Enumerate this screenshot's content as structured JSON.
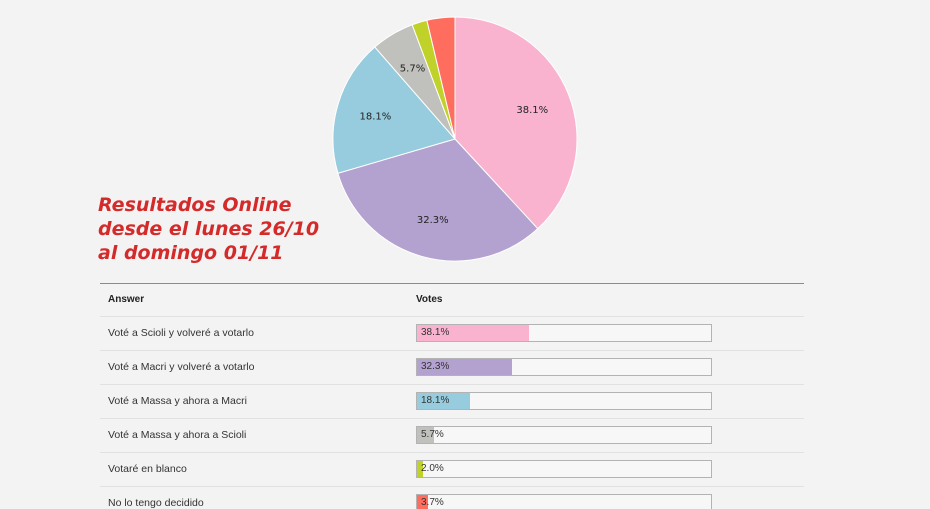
{
  "headline": {
    "line1": "Resultados Online",
    "line2": "desde el lunes 26/10",
    "line3": "al domingo 01/11"
  },
  "chart_data": {
    "type": "pie",
    "title": "",
    "slices": [
      {
        "label": "Voté a Scioli y volveré a votarlo",
        "value": 38.1,
        "display": "38.1%",
        "color": "#f9b3cf"
      },
      {
        "label": "Voté a Macri y volveré a votarlo",
        "value": 32.3,
        "display": "32.3%",
        "color": "#b3a1cf"
      },
      {
        "label": "Voté a Massa y ahora a Macri",
        "value": 18.1,
        "display": "18.1%",
        "color": "#96ccdd"
      },
      {
        "label": "Voté a Massa y ahora a Scioli",
        "value": 5.7,
        "display": "5.7%",
        "color": "#c0c0bd"
      },
      {
        "label": "Votaré en blanco",
        "value": 2.0,
        "display": "2.0%",
        "color": "#c0d22a"
      },
      {
        "label": "No lo tengo decidido",
        "value": 3.7,
        "display": "3.7%",
        "color": "#ff6d5f"
      }
    ]
  },
  "table": {
    "header_answer": "Answer",
    "header_votes": "Votes",
    "rows": [
      {
        "answer": "Voté a Scioli y volveré a votarlo",
        "pct": 38.1,
        "label": "38.1%",
        "color": "#f9b3cf"
      },
      {
        "answer": "Voté a Macri y volveré a votarlo",
        "pct": 32.3,
        "label": "32.3%",
        "color": "#b3a1cf"
      },
      {
        "answer": "Voté a Massa y ahora a Macri",
        "pct": 18.1,
        "label": "18.1%",
        "color": "#96ccdd"
      },
      {
        "answer": "Voté a Massa y ahora a Scioli",
        "pct": 5.7,
        "label": "5.7%",
        "color": "#c0c0bd"
      },
      {
        "answer": "Votaré en blanco",
        "pct": 2.0,
        "label": "2.0%",
        "color": "#c0d22a"
      },
      {
        "answer": "No lo tengo decidido",
        "pct": 3.7,
        "label": "3.7%",
        "color": "#ff6d5f"
      }
    ]
  }
}
